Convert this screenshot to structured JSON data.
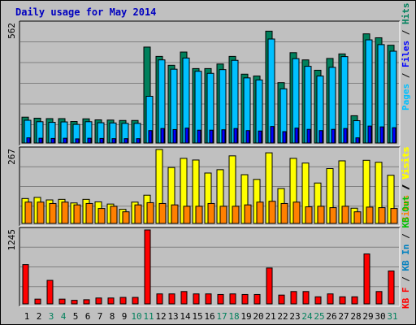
{
  "title": "Daily usage for May 2014",
  "colors": {
    "hits": "#00805c",
    "files": "#0000ff",
    "pages": "#00c0ff",
    "visits": "#ffff00",
    "sites": "#ff8000",
    "kb_in": "#0080c0",
    "kb_out": "#00c000",
    "kb_f": "#ff0000"
  },
  "chart_data": [
    {
      "type": "bar",
      "name": "hits-files-pages",
      "categories": [
        "1",
        "2",
        "3",
        "4",
        "5",
        "6",
        "7",
        "8",
        "9",
        "10",
        "11",
        "12",
        "13",
        "14",
        "15",
        "16",
        "17",
        "18",
        "19",
        "20",
        "21",
        "22",
        "23",
        "24",
        "25",
        "26",
        "27",
        "28",
        "29",
        "30",
        "31"
      ],
      "y_max_label": "562",
      "ylim": [
        0,
        562
      ],
      "legend": [
        "Pages",
        "Files",
        "Hits"
      ],
      "series": [
        {
          "name": "Hits",
          "values": [
            125,
            120,
            118,
            118,
            104,
            117,
            112,
            111,
            109,
            109,
            464,
            419,
            376,
            440,
            360,
            360,
            382,
            419,
            333,
            324,
            541,
            292,
            437,
            402,
            352,
            409,
            431,
            132,
            528,
            509,
            473
          ]
        },
        {
          "name": "Files",
          "values": [
            110,
            103,
            100,
            102,
            90,
            103,
            98,
            97,
            95,
            95,
            226,
            402,
            357,
            411,
            347,
            337,
            355,
            400,
            315,
            305,
            503,
            262,
            408,
            371,
            324,
            366,
            418,
            108,
            499,
            476,
            444
          ]
        },
        {
          "name": "Pages",
          "values": [
            25,
            23,
            22,
            23,
            20,
            23,
            22,
            21,
            21,
            21,
            60,
            70,
            65,
            72,
            62,
            62,
            64,
            70,
            60,
            58,
            80,
            55,
            72,
            66,
            60,
            66,
            70,
            25,
            82,
            78,
            74
          ]
        }
      ]
    },
    {
      "type": "bar",
      "name": "visits-sites",
      "categories": [
        "1",
        "2",
        "3",
        "4",
        "5",
        "6",
        "7",
        "8",
        "9",
        "10",
        "11",
        "12",
        "13",
        "14",
        "15",
        "16",
        "17",
        "18",
        "19",
        "20",
        "21",
        "22",
        "23",
        "24",
        "25",
        "26",
        "27",
        "28",
        "29",
        "30",
        "31"
      ],
      "y_max_label": "267",
      "ylim": [
        0,
        267
      ],
      "legend": [
        "Sites",
        "Visits"
      ],
      "series": [
        {
          "name": "Visits",
          "values": [
            90,
            94,
            85,
            87,
            74,
            87,
            78,
            70,
            51,
            77,
            102,
            267,
            202,
            235,
            229,
            182,
            194,
            244,
            176,
            159,
            255,
            126,
            235,
            218,
            146,
            198,
            226,
            55,
            228,
            221,
            174
          ]
        },
        {
          "name": "Sites",
          "values": [
            77,
            77,
            72,
            77,
            67,
            72,
            54,
            62,
            42,
            67,
            75,
            72,
            67,
            62,
            62,
            72,
            62,
            62,
            67,
            77,
            80,
            72,
            77,
            60,
            62,
            57,
            62,
            42,
            59,
            57,
            54
          ]
        }
      ]
    },
    {
      "type": "bar",
      "name": "kbytes",
      "categories": [
        "1",
        "2",
        "3",
        "4",
        "5",
        "6",
        "7",
        "8",
        "9",
        "10",
        "11",
        "12",
        "13",
        "14",
        "15",
        "16",
        "17",
        "18",
        "19",
        "20",
        "21",
        "22",
        "23",
        "24",
        "25",
        "26",
        "27",
        "28",
        "29",
        "30",
        "31"
      ],
      "y_max_label": "1245",
      "ylim": [
        0,
        1245
      ],
      "legend": [
        "KB F",
        "KB In",
        "KB Out",
        "Visits"
      ],
      "legend_visible": [
        "KB F",
        "KB In",
        "KB Out",
        "Visits"
      ],
      "series": [
        {
          "name": "KB F",
          "values": [
            662,
            80,
            396,
            80,
            60,
            70,
            99,
            99,
            109,
            109,
            1245,
            168,
            168,
            208,
            168,
            168,
            158,
            168,
            158,
            158,
            604,
            148,
            208,
            208,
            119,
            168,
            119,
            119,
            841,
            208,
            554
          ]
        }
      ]
    }
  ],
  "x_label_colors": {
    "weekend": [
      "3",
      "4",
      "10",
      "11",
      "17",
      "18",
      "24",
      "25",
      "31"
    ]
  }
}
